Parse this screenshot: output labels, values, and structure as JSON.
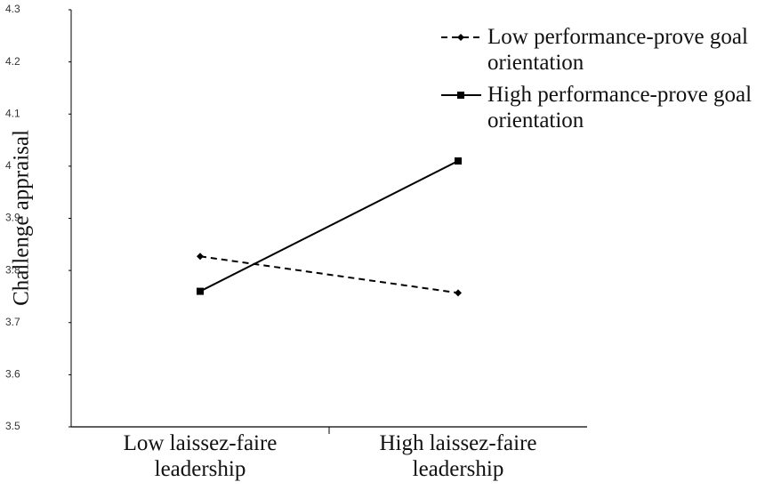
{
  "chart_data": {
    "type": "line",
    "y_label": "Challenge appraisal",
    "categories": [
      "Low laissez-faire leadership",
      "High laissez-faire leadership"
    ],
    "series": [
      {
        "name": "Low performance-prove goal orientation",
        "color": "#000000",
        "dashed": true,
        "marker": "diamond",
        "values": [
          3.827,
          3.757
        ]
      },
      {
        "name": "High performance-prove goal orientation",
        "color": "#000000",
        "dashed": false,
        "marker": "square",
        "values": [
          3.76,
          4.01
        ]
      }
    ],
    "ylim": [
      3.5,
      4.3
    ],
    "yticks": [
      3.5,
      3.6,
      3.7,
      3.8,
      3.9,
      4,
      4.1,
      4.2,
      4.3
    ],
    "grid": false,
    "legend": "upper right"
  }
}
